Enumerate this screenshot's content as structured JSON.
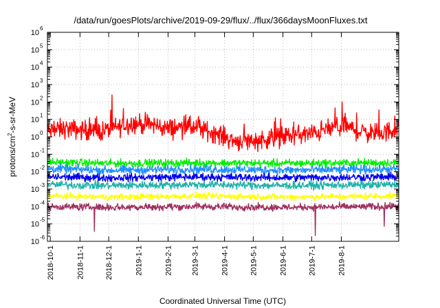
{
  "chart_data": {
    "type": "line",
    "title": "/data/run/goesPlots/archive/2019-09-29/flux/../flux/366daysMoonFluxes.txt",
    "xlabel": "Coordinated Universal Time (UTC)",
    "ylabel": {
      "pre": "protons/cm",
      "sup": "2",
      "post": "-s-sr-MeV"
    },
    "yscale": "log",
    "ylim": [
      1e-06,
      1000000.0
    ],
    "y_ticks": [
      {
        "base": "10",
        "exp": "-6",
        "value": 1e-06
      },
      {
        "base": "10",
        "exp": "-5",
        "value": 1e-05
      },
      {
        "base": "10",
        "exp": "-4",
        "value": 0.0001
      },
      {
        "base": "10",
        "exp": "-3",
        "value": 0.001
      },
      {
        "base": "10",
        "exp": "-2",
        "value": 0.01
      },
      {
        "base": "10",
        "exp": "-1",
        "value": 0.1
      },
      {
        "base": "10",
        "exp": "0",
        "value": 1
      },
      {
        "base": "10",
        "exp": "1",
        "value": 10
      },
      {
        "base": "10",
        "exp": "2",
        "value": 100
      },
      {
        "base": "10",
        "exp": "3",
        "value": 1000
      },
      {
        "base": "10",
        "exp": "4",
        "value": 10000
      },
      {
        "base": "10",
        "exp": "5",
        "value": 100000
      },
      {
        "base": "10",
        "exp": "6",
        "value": 1000000
      }
    ],
    "xlim": [
      "2018-09-28",
      "2019-09-30"
    ],
    "x_ticks": [
      "2018-10-1",
      "2018-11-1",
      "2018-12-1",
      "2019-1-1",
      "2019-2-1",
      "2019-3-1",
      "2019-4-1",
      "2019-5-1",
      "2019-6-1",
      "2019-7-1",
      "2019-8-1"
    ],
    "grid": true,
    "series": [
      {
        "color": "#ff0000",
        "points": [
          [
            "2018-09-28",
            2.0
          ],
          [
            "2018-10-15",
            3.0
          ],
          [
            "2018-11-01",
            2.5
          ],
          [
            "2018-11-20",
            2.0
          ],
          [
            "2018-12-05",
            3.0
          ],
          [
            "2018-12-25",
            6.0
          ],
          [
            "2019-01-15",
            5.0
          ],
          [
            "2019-02-01",
            3.0
          ],
          [
            "2019-02-20",
            4.0
          ],
          [
            "2019-03-10",
            2.5
          ],
          [
            "2019-03-25",
            1.5
          ],
          [
            "2019-04-10",
            0.6
          ],
          [
            "2019-05-01",
            0.6
          ],
          [
            "2019-05-20",
            0.8
          ],
          [
            "2019-06-10",
            1.2
          ],
          [
            "2019-07-01",
            1.5
          ],
          [
            "2019-07-20",
            3.0
          ],
          [
            "2019-08-05",
            4.0
          ],
          [
            "2019-08-20",
            2.0
          ],
          [
            "2019-09-10",
            1.5
          ],
          [
            "2019-09-30",
            3.0
          ]
        ]
      },
      {
        "color": "#00ee00",
        "points": [
          [
            "2018-09-28",
            0.035
          ],
          [
            "2018-12-01",
            0.03
          ],
          [
            "2019-03-01",
            0.032
          ],
          [
            "2019-06-01",
            0.03
          ],
          [
            "2019-09-30",
            0.033
          ]
        ]
      },
      {
        "color": "#1e90ff",
        "points": [
          [
            "2018-09-28",
            0.015
          ],
          [
            "2018-12-01",
            0.012
          ],
          [
            "2019-03-01",
            0.014
          ],
          [
            "2019-06-01",
            0.012
          ],
          [
            "2019-09-30",
            0.014
          ]
        ]
      },
      {
        "color": "#0000ee",
        "points": [
          [
            "2018-09-28",
            0.005
          ],
          [
            "2018-12-01",
            0.0045
          ],
          [
            "2019-03-01",
            0.005
          ],
          [
            "2019-06-01",
            0.0045
          ],
          [
            "2019-09-30",
            0.005
          ]
        ]
      },
      {
        "color": "#20b2aa",
        "points": [
          [
            "2018-09-28",
            0.0018
          ],
          [
            "2018-12-01",
            0.0016
          ],
          [
            "2019-03-01",
            0.0018
          ],
          [
            "2019-06-01",
            0.0016
          ],
          [
            "2019-09-30",
            0.0018
          ]
        ]
      },
      {
        "color": "#ffff00",
        "points": [
          [
            "2018-09-28",
            0.0004
          ],
          [
            "2018-12-01",
            0.00035
          ],
          [
            "2019-03-01",
            0.0004
          ],
          [
            "2019-06-01",
            0.00035
          ],
          [
            "2019-09-30",
            0.0004
          ]
        ]
      },
      {
        "color": "#a03060",
        "points": [
          [
            "2018-09-28",
            0.0001
          ],
          [
            "2018-12-01",
            9e-05
          ],
          [
            "2019-03-01",
            0.0001
          ],
          [
            "2019-06-01",
            9e-05
          ],
          [
            "2019-09-30",
            0.0001
          ]
        ]
      }
    ]
  }
}
